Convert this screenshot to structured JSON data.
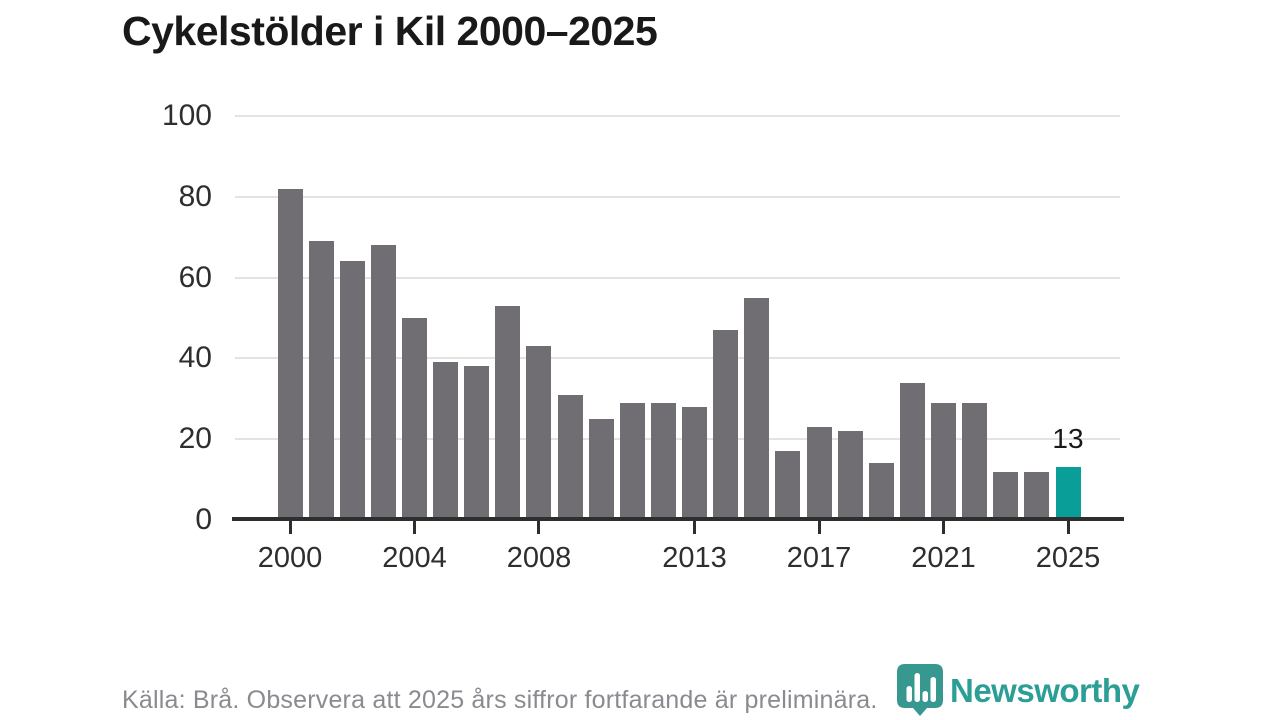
{
  "page": {
    "source_note": "Källa: Brå. Observera att 2025 års siffror fortfarande är preliminära.",
    "brand": {
      "name": "Newsworthy",
      "icon": "bar-chart-pin-icon"
    }
  },
  "colors": {
    "bar": "#706d73",
    "highlight": "#0a9e99",
    "brand_teal": "#2b9e96",
    "logo_teal": "#36988f",
    "grid": "#e3e3e3",
    "axis": "#2e2e2e",
    "title_text": "#191919",
    "tick_text": "#2e2e2e",
    "source_text": "#8a8a90"
  },
  "chart_data": {
    "type": "bar",
    "title": "Cykelstölder i Kil 2000–2025",
    "x": [
      2000,
      2001,
      2002,
      2003,
      2004,
      2005,
      2006,
      2007,
      2008,
      2009,
      2010,
      2011,
      2012,
      2013,
      2014,
      2015,
      2016,
      2017,
      2018,
      2019,
      2020,
      2021,
      2022,
      2023,
      2024,
      2025
    ],
    "values": [
      82,
      69,
      64,
      68,
      50,
      39,
      38,
      53,
      43,
      31,
      25,
      29,
      29,
      28,
      47,
      55,
      17,
      23,
      22,
      14,
      34,
      29,
      29,
      12,
      12,
      13
    ],
    "highlight_index": 25,
    "highlight_label": "13",
    "xlabel": "",
    "ylabel": "",
    "ylim": [
      0,
      100
    ],
    "ytick_values": [
      0,
      20,
      40,
      60,
      80,
      100
    ],
    "xtick_values": [
      2000,
      2004,
      2008,
      2013,
      2017,
      2021,
      2025
    ],
    "grid": "horizontal",
    "legend": "none",
    "source": "Källa: Brå. Observera att 2025 års siffror fortfarande är preliminära."
  }
}
